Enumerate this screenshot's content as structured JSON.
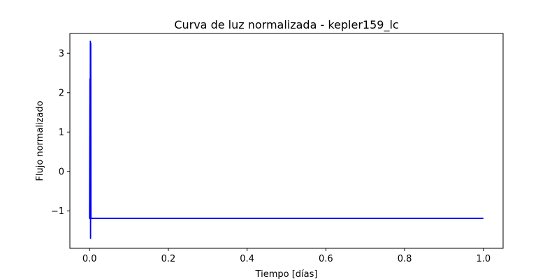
{
  "chart_data": {
    "type": "line",
    "title": "Curva de luz normalizada - kepler159_lc",
    "xlabel": "Tiempo [días]",
    "ylabel": "Flujo normalizado",
    "xlim": [
      -0.05,
      1.05
    ],
    "ylim": [
      -1.95,
      3.5
    ],
    "xticks": [
      0.0,
      0.2,
      0.4,
      0.6,
      0.8,
      1.0
    ],
    "xtick_labels": [
      "0.0",
      "0.2",
      "0.4",
      "0.6",
      "0.8",
      "1.0"
    ],
    "yticks": [
      -1,
      0,
      1,
      2,
      3
    ],
    "ytick_labels": [
      "−1",
      "0",
      "1",
      "2",
      "3"
    ],
    "grid": false,
    "line_color": "#0000ff",
    "series": [
      {
        "x": [
          0.0,
          0.001,
          0.0015,
          0.002,
          0.0025,
          0.003,
          0.0035,
          0.004,
          0.1,
          0.3,
          0.5,
          0.7,
          0.9,
          1.0
        ],
        "y": [
          -1.2,
          2.35,
          -1.2,
          3.3,
          -1.7,
          3.25,
          -1.2,
          -1.19,
          -1.19,
          -1.19,
          -1.19,
          -1.19,
          -1.19,
          -1.19
        ]
      }
    ]
  }
}
